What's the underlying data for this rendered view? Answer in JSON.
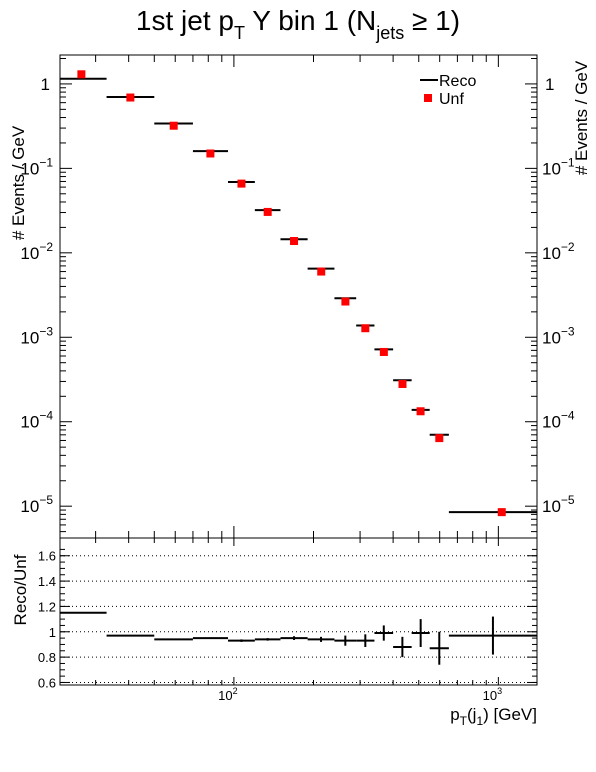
{
  "chart_data": [
    {
      "type": "scatter",
      "title": {
        "main": "1st jet p",
        "sub1": "T",
        "mid": " Y bin 1 (N",
        "sub2": "jets",
        "tail": " ≥ 1)"
      },
      "xlabel": {
        "main": "p",
        "sub1": "T",
        "mid": "(j",
        "sub2": "1",
        "tail": ") [GeV]"
      },
      "ylabel": "# Events / GeV",
      "ylabel_right": "# Events / GeV",
      "x_scale": "log",
      "y_scale": "log",
      "xlim": [
        22,
        1400
      ],
      "ylim": [
        4.2e-06,
        2.2
      ],
      "y_ticks": [
        {
          "value": 1,
          "label": "1"
        },
        {
          "value": 0.1,
          "label": "10",
          "exp": "−1"
        },
        {
          "value": 0.01,
          "label": "10",
          "exp": "−2"
        },
        {
          "value": 0.001,
          "label": "10",
          "exp": "−3"
        },
        {
          "value": 0.0001,
          "label": "10",
          "exp": "−4"
        },
        {
          "value": 1e-05,
          "label": "10",
          "exp": "−5"
        }
      ],
      "legend": {
        "placement": "top-right",
        "entries": [
          "Reco",
          "Unf"
        ]
      },
      "colors": {
        "reco": "#000000",
        "unf": "#ff0000"
      },
      "series": [
        {
          "name": "Reco",
          "points": [
            {
              "xlo": 22,
              "xhi": 33,
              "y": 1.15
            },
            {
              "xlo": 33,
              "xhi": 50,
              "y": 0.7
            },
            {
              "xlo": 50,
              "xhi": 70,
              "y": 0.34
            },
            {
              "xlo": 70,
              "xhi": 95,
              "y": 0.16
            },
            {
              "xlo": 95,
              "xhi": 120,
              "y": 0.069
            },
            {
              "xlo": 120,
              "xhi": 150,
              "y": 0.032
            },
            {
              "xlo": 150,
              "xhi": 190,
              "y": 0.0145
            },
            {
              "xlo": 190,
              "xhi": 240,
              "y": 0.0065
            },
            {
              "xlo": 240,
              "xhi": 290,
              "y": 0.0029
            },
            {
              "xlo": 290,
              "xhi": 340,
              "y": 0.00138
            },
            {
              "xlo": 340,
              "xhi": 400,
              "y": 0.00072
            },
            {
              "xlo": 400,
              "xhi": 470,
              "y": 0.00031
            },
            {
              "xlo": 470,
              "xhi": 550,
              "y": 0.000138
            },
            {
              "xlo": 550,
              "xhi": 650,
              "y": 7e-05
            },
            {
              "xlo": 650,
              "xhi": 1400,
              "y": 8.5e-06
            }
          ]
        },
        {
          "name": "Unf",
          "points": [
            {
              "x": 26.5,
              "y": 1.3
            },
            {
              "x": 40.6,
              "y": 0.69
            },
            {
              "x": 59.2,
              "y": 0.32
            },
            {
              "x": 81.5,
              "y": 0.15
            },
            {
              "x": 106.8,
              "y": 0.066
            },
            {
              "x": 134.2,
              "y": 0.0305
            },
            {
              "x": 168.8,
              "y": 0.0138
            },
            {
              "x": 213.9,
              "y": 0.006
            },
            {
              "x": 264,
              "y": 0.00265
            },
            {
              "x": 314,
              "y": 0.00128
            },
            {
              "x": 369,
              "y": 0.00067
            },
            {
              "x": 434,
              "y": 0.00028
            },
            {
              "x": 508,
              "y": 0.000133
            },
            {
              "x": 598,
              "y": 6.4e-05
            },
            {
              "x": 1030,
              "y": 8.5e-06
            }
          ]
        }
      ]
    },
    {
      "type": "scatter",
      "ylabel": "Reco/Unf",
      "x_scale": "log",
      "xlim": [
        22,
        1400
      ],
      "ylim": [
        0.58,
        1.74
      ],
      "x_ticks": [
        {
          "value": 100,
          "label": "10",
          "exp": "2"
        },
        {
          "value": 1000,
          "label": "10",
          "exp": "3"
        }
      ],
      "y_ticks": [
        {
          "value": 0.6,
          "label": "0.6"
        },
        {
          "value": 0.8,
          "label": "0.8"
        },
        {
          "value": 1,
          "label": "1"
        },
        {
          "value": 1.2,
          "label": "1.2"
        },
        {
          "value": 1.4,
          "label": "1.4"
        },
        {
          "value": 1.6,
          "label": "1.6"
        }
      ],
      "grid": "horizontal dotted",
      "points": [
        {
          "xlo": 22,
          "xhi": 33,
          "y": 1.15,
          "err": 0.005
        },
        {
          "xlo": 33,
          "xhi": 50,
          "y": 0.97,
          "err": 0.005
        },
        {
          "xlo": 50,
          "xhi": 70,
          "y": 0.94,
          "err": 0.005
        },
        {
          "xlo": 70,
          "xhi": 95,
          "y": 0.95,
          "err": 0.005
        },
        {
          "xlo": 95,
          "xhi": 120,
          "y": 0.93,
          "err": 0.01
        },
        {
          "xlo": 120,
          "xhi": 150,
          "y": 0.94,
          "err": 0.01
        },
        {
          "xlo": 150,
          "xhi": 190,
          "y": 0.95,
          "err": 0.015
        },
        {
          "xlo": 190,
          "xhi": 240,
          "y": 0.94,
          "err": 0.02
        },
        {
          "xlo": 240,
          "xhi": 290,
          "y": 0.93,
          "err": 0.04
        },
        {
          "xlo": 290,
          "xhi": 340,
          "y": 0.93,
          "err": 0.05
        },
        {
          "xlo": 340,
          "xhi": 400,
          "y": 0.99,
          "err": 0.06
        },
        {
          "xlo": 400,
          "xhi": 470,
          "y": 0.88,
          "err": 0.08
        },
        {
          "xlo": 470,
          "xhi": 550,
          "y": 0.99,
          "err": 0.11
        },
        {
          "xlo": 550,
          "xhi": 650,
          "y": 0.87,
          "err": 0.13
        },
        {
          "xlo": 650,
          "xhi": 1400,
          "y": 0.97,
          "err": 0.15
        }
      ]
    }
  ]
}
